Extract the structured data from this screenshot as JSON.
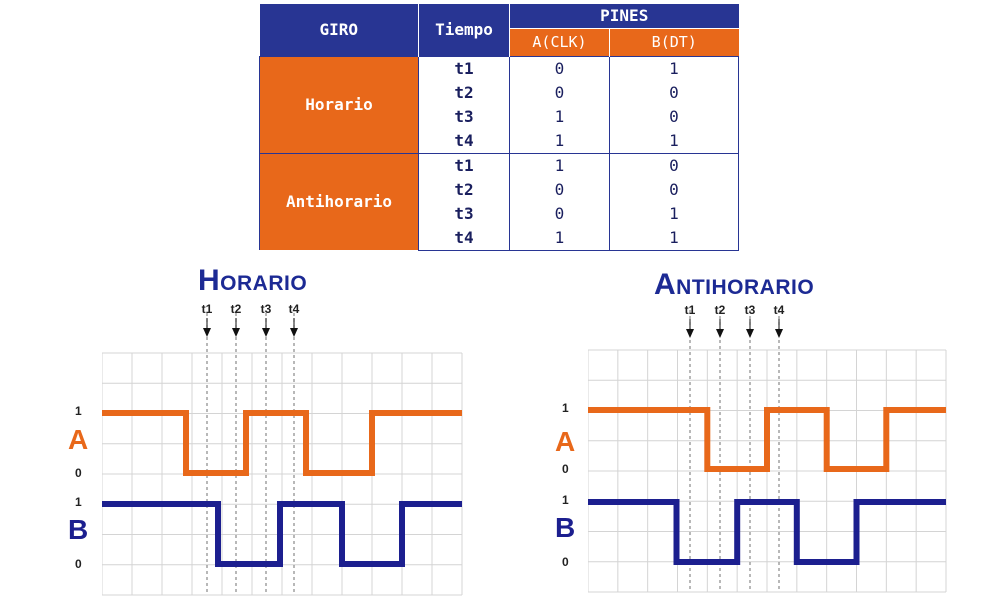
{
  "table": {
    "headers": {
      "giro": "GIRO",
      "tiempo": "Tiempo",
      "pines": "PINES",
      "a": "A(CLK)",
      "b": "B(DT)"
    },
    "groups": [
      {
        "direction": "Horario",
        "rows": [
          {
            "t": "t1",
            "a": "0",
            "b": "1"
          },
          {
            "t": "t2",
            "a": "0",
            "b": "0"
          },
          {
            "t": "t3",
            "a": "1",
            "b": "0"
          },
          {
            "t": "t4",
            "a": "1",
            "b": "1"
          }
        ]
      },
      {
        "direction": "Antihorario",
        "rows": [
          {
            "t": "t1",
            "a": "1",
            "b": "0"
          },
          {
            "t": "t2",
            "a": "0",
            "b": "0"
          },
          {
            "t": "t3",
            "a": "0",
            "b": "1"
          },
          {
            "t": "t4",
            "a": "1",
            "b": "1"
          }
        ]
      }
    ]
  },
  "diagrams": [
    {
      "title": "Horario",
      "time_labels": [
        "t1",
        "t2",
        "t3",
        "t4"
      ],
      "signals": [
        {
          "name": "A",
          "high_label": "1",
          "low_label": "0",
          "color": "#e8681a",
          "levels": [
            1,
            0,
            1,
            0,
            1
          ],
          "transitions": [
            0.2333,
            0.4,
            0.5667,
            0.75
          ]
        },
        {
          "name": "B",
          "high_label": "1",
          "low_label": "0",
          "color": "#1c1f8f",
          "levels": [
            1,
            0,
            1,
            0,
            1
          ],
          "transitions": [
            0.3222,
            0.4944,
            0.6667,
            0.8333
          ]
        }
      ]
    },
    {
      "title": "Antihorario",
      "time_labels": [
        "t1",
        "t2",
        "t3",
        "t4"
      ],
      "signals": [
        {
          "name": "A",
          "high_label": "1",
          "low_label": "0",
          "color": "#e8681a",
          "levels": [
            1,
            0,
            1,
            0,
            1
          ],
          "transitions": [
            0.3333,
            0.5,
            0.6667,
            0.8333
          ]
        },
        {
          "name": "B",
          "high_label": "1",
          "low_label": "0",
          "color": "#1c1f8f",
          "levels": [
            1,
            0,
            1,
            0,
            1
          ],
          "transitions": [
            0.2472,
            0.4167,
            0.5833,
            0.75
          ]
        }
      ]
    }
  ],
  "colors": {
    "navy": "#283593",
    "orange": "#e8681a"
  }
}
